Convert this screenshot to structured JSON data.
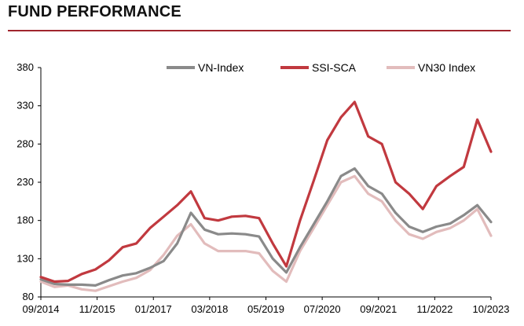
{
  "header": {
    "title": "FUND PERFORMANCE",
    "rule_color": "#a0252d"
  },
  "chart_data": {
    "type": "line",
    "title": "FUND PERFORMANCE",
    "xlabel": "",
    "ylabel": "",
    "ylim": [
      80,
      380
    ],
    "yticks": [
      80,
      130,
      180,
      230,
      280,
      330,
      380
    ],
    "x_ticks": [
      "09/2014",
      "11/2015",
      "01/2017",
      "03/2018",
      "05/2019",
      "07/2020",
      "09/2021",
      "11/2022",
      "10/2023"
    ],
    "grid": false,
    "legend_position": "top",
    "x": [
      "09/2014",
      "01/2015",
      "05/2015",
      "09/2015",
      "01/2016",
      "05/2016",
      "09/2016",
      "01/2017",
      "05/2017",
      "09/2017",
      "01/2018",
      "04/2018",
      "08/2018",
      "12/2018",
      "04/2019",
      "08/2019",
      "12/2019",
      "03/2020",
      "05/2020",
      "09/2020",
      "01/2021",
      "05/2021",
      "09/2021",
      "12/2021",
      "02/2022",
      "04/2022",
      "06/2022",
      "09/2022",
      "11/2022",
      "01/2023",
      "04/2023",
      "07/2023",
      "09/2023",
      "10/2023"
    ],
    "series": [
      {
        "name": "VN-Index",
        "color": "#8a8a8a",
        "values": [
          103,
          97,
          96,
          96,
          95,
          102,
          108,
          111,
          118,
          127,
          150,
          190,
          168,
          162,
          163,
          162,
          159,
          130,
          112,
          145,
          175,
          205,
          238,
          248,
          225,
          215,
          190,
          172,
          165,
          172,
          176,
          187,
          200,
          178
        ]
      },
      {
        "name": "SSI-SCA",
        "color": "#c1393f",
        "values": [
          106,
          100,
          101,
          110,
          116,
          128,
          145,
          150,
          170,
          185,
          200,
          218,
          183,
          180,
          185,
          186,
          183,
          150,
          120,
          180,
          232,
          285,
          315,
          335,
          290,
          280,
          230,
          215,
          195,
          225,
          238,
          250,
          312,
          270
        ]
      },
      {
        "name": "VN30 Index",
        "color": "#e2bcbc",
        "values": [
          100,
          93,
          95,
          90,
          88,
          94,
          100,
          105,
          115,
          135,
          160,
          175,
          150,
          140,
          140,
          140,
          137,
          114,
          100,
          140,
          170,
          200,
          230,
          238,
          215,
          205,
          180,
          162,
          156,
          165,
          170,
          180,
          195,
          160
        ]
      }
    ]
  }
}
